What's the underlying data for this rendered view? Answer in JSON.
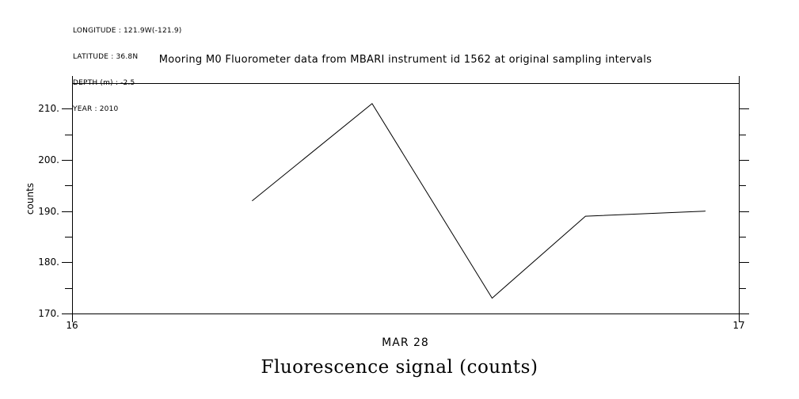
{
  "metadata": {
    "longitude": "LONGITUDE : 121.9W(-121.9)",
    "latitude": "LATITUDE : 36.8N",
    "depth": "DEPTH (m) : -2.5",
    "year": "YEAR : 2010"
  },
  "title": "Mooring M0 Fluorometer data from MBARI instrument id 1562 at original sampling intervals",
  "chart_data": {
    "type": "line",
    "title": "Mooring M0 Fluorometer data from MBARI instrument id 1562 at original sampling intervals",
    "x": [
      16.27,
      16.45,
      16.63,
      16.77,
      16.95
    ],
    "y": [
      192,
      211,
      173,
      189,
      190
    ],
    "xlabel": "MAR 28",
    "ylabel": "counts",
    "xlim": [
      16,
      17
    ],
    "ylim": [
      170,
      215
    ],
    "x_tick_values": [
      16,
      17
    ],
    "x_tick_labels": [
      "16",
      "17"
    ],
    "y_major_tick_values": [
      170,
      180,
      190,
      200,
      210
    ],
    "y_major_tick_labels": [
      "170.",
      "180.",
      "190.",
      "200.",
      "210."
    ],
    "y_minor_tick_values": [
      175,
      185,
      195,
      205
    ],
    "grid": false,
    "legend_position": "none",
    "line_color": "#000000",
    "background_color": "#ffffff",
    "bottom_title": "Fluorescence signal (counts)"
  }
}
